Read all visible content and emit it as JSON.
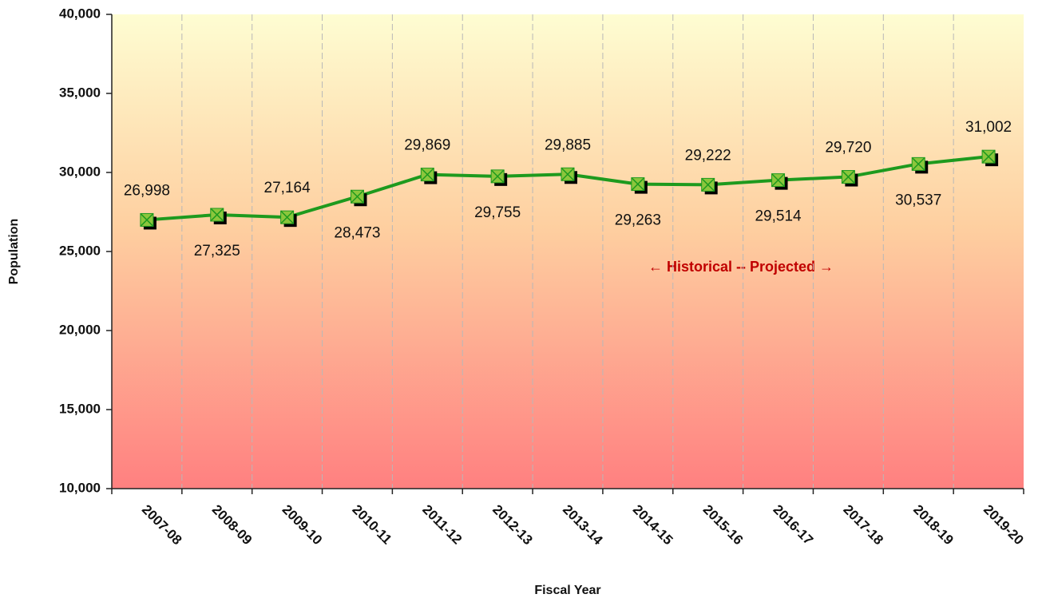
{
  "chart_data": {
    "type": "line",
    "y_label": "Population",
    "x_label": "Fiscal Year",
    "annotation": "← Historical -- Projected →",
    "categories": [
      "2007-08",
      "2008-09",
      "2009-10",
      "2010-11",
      "2011-12",
      "2012-13",
      "2013-14",
      "2014-15",
      "2015-16",
      "2016-17",
      "2017-18",
      "2018-19",
      "2019-20"
    ],
    "values": [
      26998,
      27325,
      27164,
      28473,
      29869,
      29755,
      29885,
      29263,
      29222,
      29514,
      29720,
      30537,
      31002
    ],
    "value_labels": [
      "26,998",
      "27,325",
      "27,164",
      "28,473",
      "29,869",
      "29,755",
      "29,885",
      "29,263",
      "29,222",
      "29,514",
      "29,720",
      "30,537",
      "31,002"
    ],
    "color": "#1e9a1e",
    "marker_color": "#8cc63c",
    "ylim": [
      10000,
      40000
    ],
    "yticks": [
      {
        "value": 10000,
        "label": "10,000"
      },
      {
        "value": 15000,
        "label": "15,000"
      },
      {
        "value": 20000,
        "label": "20,000"
      },
      {
        "value": 25000,
        "label": "25,000"
      },
      {
        "value": 30000,
        "label": "30,000"
      },
      {
        "value": 35000,
        "label": "35,000"
      },
      {
        "value": 40000,
        "label": "40,000"
      }
    ],
    "grid": true
  }
}
